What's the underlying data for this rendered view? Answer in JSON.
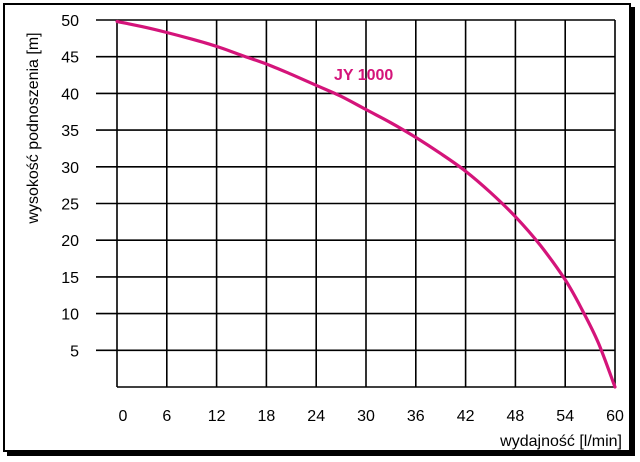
{
  "chart_data": {
    "type": "line",
    "title": "",
    "xlabel": "wydajność [l/min]",
    "ylabel": "wysokość podnoszenia [m]",
    "xlim": [
      0,
      60
    ],
    "ylim": [
      0,
      50
    ],
    "x_ticks": [
      0,
      6,
      12,
      18,
      24,
      30,
      36,
      42,
      48,
      54,
      60
    ],
    "y_ticks": [
      5,
      10,
      15,
      20,
      25,
      30,
      35,
      40,
      45,
      50
    ],
    "grid": true,
    "series": [
      {
        "name": "JY 1000",
        "color": "#d4147a",
        "x": [
          0,
          3,
          6,
          9,
          12,
          15,
          18,
          21,
          24,
          27,
          30,
          33,
          36,
          39,
          42,
          45,
          48,
          51,
          54,
          56,
          58,
          60
        ],
        "y": [
          49.8,
          49.1,
          48.3,
          47.4,
          46.4,
          45.2,
          44.0,
          42.6,
          41.1,
          39.6,
          37.8,
          36.0,
          34.0,
          31.8,
          29.4,
          26.5,
          23.2,
          19.3,
          14.6,
          10.6,
          6.0,
          0.0
        ]
      }
    ]
  }
}
